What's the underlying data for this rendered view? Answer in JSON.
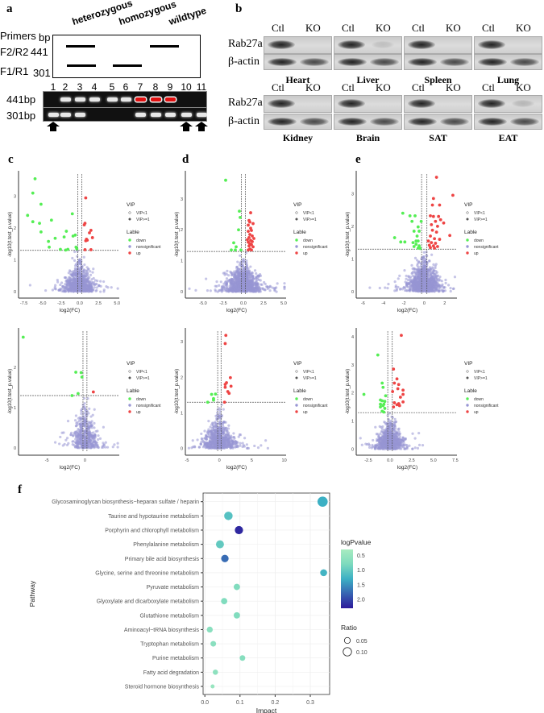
{
  "panel_labels": {
    "a": "a",
    "b": "b",
    "c": "c",
    "d": "d",
    "e": "e",
    "f": "f"
  },
  "panel_a": {
    "genotypes": [
      "heterozygous",
      "homozygous",
      "wildtype"
    ],
    "primers_header": "Primers",
    "bp_header": "bp",
    "primer_rows": [
      {
        "name": "F2/R2",
        "bp": "441"
      },
      {
        "name": "F1/R1",
        "bp": "301"
      }
    ],
    "lanes": [
      "1",
      "2",
      "3",
      "4",
      "5",
      "6",
      "7",
      "8",
      "9",
      "10",
      "11"
    ],
    "gel_rows": [
      {
        "label": "441bp",
        "bands": [
          0,
          1,
          1,
          1,
          1,
          1,
          2,
          2,
          2,
          0,
          0
        ]
      },
      {
        "label": "301bp",
        "bands": [
          1,
          1,
          1,
          0,
          0,
          0,
          1,
          1,
          1,
          1,
          1
        ]
      }
    ],
    "arrow_lanes": [
      1,
      10,
      11
    ]
  },
  "panel_b": {
    "ctl": "Ctl",
    "ko": "KO",
    "rows": [
      {
        "protein": "Rab27a",
        "control": "β-actin",
        "tissues": [
          "Heart",
          "Liver",
          "Spleen",
          "Lung"
        ]
      },
      {
        "protein": "Rab27a",
        "control": "β-actin",
        "tissues": [
          "Kidney",
          "Brain",
          "SAT",
          "EAT"
        ]
      }
    ]
  },
  "chart_data": [
    {
      "panel": "c",
      "type": "scatter",
      "xlabel": "log2(FC)",
      "ylabel": "-log10(t.test_p.value)",
      "xlim": [
        -8,
        5.3
      ],
      "ylim": [
        -0.1,
        3.7
      ],
      "xticks": [
        -7.5,
        -5,
        -2.5,
        0,
        2.5,
        5
      ],
      "xtick_labels": [
        "-7.5",
        "-5.0",
        "-2.5",
        "0.0",
        "2.5",
        "5.0"
      ],
      "yticks": [
        0,
        1,
        2,
        3
      ],
      "hline": 1.3,
      "vlines": [
        -0.26,
        0.26
      ],
      "nonsig_cloud": {
        "n": 700,
        "x_sd": 0.9,
        "y_max": 1.3,
        "seed": 3
      },
      "down": [
        [
          -6,
          3.55
        ],
        [
          -6.3,
          3.1
        ],
        [
          -5.2,
          2.75
        ],
        [
          -7,
          2.4
        ],
        [
          -6.3,
          2.2
        ],
        [
          -5.4,
          2.15
        ],
        [
          -3.8,
          2.25
        ],
        [
          -1,
          2.45
        ],
        [
          -5.2,
          1.88
        ],
        [
          -1.8,
          1.9
        ],
        [
          -2.1,
          1.72
        ],
        [
          -0.9,
          1.75
        ],
        [
          -0.6,
          1.78
        ],
        [
          -4.2,
          1.58
        ],
        [
          -3.3,
          1.68
        ],
        [
          -4.1,
          1.4
        ],
        [
          -2.6,
          1.33
        ],
        [
          -1.6,
          1.33
        ],
        [
          -0.5,
          1.4
        ],
        [
          -0.4,
          1.35
        ],
        [
          -1.9,
          1.31
        ]
      ],
      "up": [
        [
          0.8,
          2.95
        ],
        [
          0.7,
          2.15
        ],
        [
          0.6,
          2.1
        ],
        [
          1.5,
          1.93
        ],
        [
          1.3,
          1.85
        ],
        [
          1.7,
          1.7
        ],
        [
          0.9,
          1.65
        ],
        [
          1.0,
          1.62
        ],
        [
          0.8,
          1.6
        ],
        [
          1.5,
          1.32
        ],
        [
          0.7,
          1.32
        ]
      ]
    },
    {
      "panel": "d",
      "type": "scatter",
      "xlabel": "log2(FC)",
      "ylabel": "-log10(t.test_p.value)",
      "xlim": [
        -7,
        5.3
      ],
      "ylim": [
        -0.1,
        3.8
      ],
      "xticks": [
        -5,
        -2.5,
        0,
        2.5,
        5
      ],
      "xtick_labels": [
        "-5.0",
        "-2.5",
        "0.0",
        "2.5",
        "5.0"
      ],
      "yticks": [
        0,
        1,
        2,
        3
      ],
      "hline": 1.3,
      "vlines": [
        -0.26,
        0.26
      ],
      "nonsig_cloud": {
        "n": 900,
        "x_sd": 1.0,
        "y_max": 1.3,
        "seed": 7
      },
      "down": [
        [
          -2.2,
          3.6
        ],
        [
          -0.5,
          2.6
        ],
        [
          -0.4,
          2.4
        ],
        [
          -0.6,
          2.0
        ],
        [
          -1.2,
          1.58
        ],
        [
          -1.5,
          1.35
        ],
        [
          -0.9,
          1.45
        ],
        [
          -1.0,
          1.35
        ],
        [
          -0.3,
          1.35
        ]
      ],
      "up": [
        [
          0.9,
          2.55
        ],
        [
          0.7,
          2.3
        ],
        [
          0.8,
          2.25
        ],
        [
          1.2,
          2.2
        ],
        [
          0.6,
          2.15
        ],
        [
          0.9,
          2.05
        ],
        [
          1.0,
          1.98
        ],
        [
          0.6,
          1.95
        ],
        [
          0.8,
          1.85
        ],
        [
          1.1,
          1.8
        ],
        [
          0.7,
          1.75
        ],
        [
          1.3,
          1.72
        ],
        [
          0.5,
          1.68
        ],
        [
          0.9,
          1.66
        ],
        [
          1.1,
          1.62
        ],
        [
          0.6,
          1.6
        ],
        [
          0.8,
          1.55
        ],
        [
          1.0,
          1.52
        ],
        [
          0.7,
          1.48
        ],
        [
          1.2,
          1.45
        ],
        [
          0.8,
          1.38
        ],
        [
          0.6,
          1.35
        ],
        [
          1.0,
          1.35
        ]
      ]
    },
    {
      "panel": "e",
      "type": "scatter",
      "xlabel": "log2(FC)",
      "ylabel": "-log10(t.test_p.value)",
      "xlim": [
        -6.5,
        3.2
      ],
      "ylim": [
        -0.1,
        3.6
      ],
      "xticks": [
        -6,
        -4,
        -2,
        0,
        2
      ],
      "xtick_labels": [
        "-6",
        "-4",
        "-2",
        "0",
        "2"
      ],
      "yticks": [
        0,
        1,
        2,
        3
      ],
      "hline": 1.3,
      "vlines": [
        -0.26,
        0.26
      ],
      "nonsig_cloud": {
        "n": 1000,
        "x_sd": 0.7,
        "y_max": 1.3,
        "seed": 11
      },
      "down": [
        [
          -2.1,
          2.4
        ],
        [
          -1.4,
          2.32
        ],
        [
          -0.9,
          2.32
        ],
        [
          -1.2,
          2.15
        ],
        [
          -0.3,
          2.15
        ],
        [
          -0.6,
          1.98
        ],
        [
          -1.0,
          1.85
        ],
        [
          -0.5,
          1.85
        ],
        [
          -2.9,
          1.65
        ],
        [
          -0.7,
          1.7
        ],
        [
          -2.3,
          1.52
        ],
        [
          -1.9,
          1.52
        ],
        [
          -1.1,
          1.5
        ],
        [
          -0.6,
          1.55
        ],
        [
          -0.8,
          1.45
        ],
        [
          -0.5,
          1.4
        ],
        [
          -1.0,
          1.38
        ],
        [
          -0.6,
          1.33
        ],
        [
          -0.4,
          1.32
        ],
        [
          -0.8,
          1.55
        ]
      ],
      "up": [
        [
          1.2,
          3.5
        ],
        [
          2.8,
          2.95
        ],
        [
          0.9,
          2.85
        ],
        [
          0.8,
          2.65
        ],
        [
          1.5,
          2.65
        ],
        [
          0.6,
          2.32
        ],
        [
          0.9,
          2.3
        ],
        [
          1.4,
          2.3
        ],
        [
          1.6,
          2.2
        ],
        [
          1.1,
          2.15
        ],
        [
          1.9,
          2.1
        ],
        [
          0.7,
          2.05
        ],
        [
          1.3,
          2.0
        ],
        [
          0.8,
          1.88
        ],
        [
          1.2,
          1.82
        ],
        [
          2.5,
          1.72
        ],
        [
          0.6,
          1.7
        ],
        [
          1.0,
          1.62
        ],
        [
          1.5,
          1.6
        ],
        [
          0.4,
          1.55
        ],
        [
          0.7,
          1.5
        ],
        [
          1.1,
          1.48
        ],
        [
          0.5,
          1.42
        ],
        [
          0.9,
          1.4
        ],
        [
          1.3,
          1.38
        ],
        [
          0.6,
          1.35
        ],
        [
          1.0,
          1.33
        ]
      ]
    },
    {
      "panel": "c2",
      "type": "scatter",
      "xlabel": "log2(FC)",
      "ylabel": "-log10(t.test_p.value)",
      "xlim": [
        -8.5,
        4.5
      ],
      "ylim": [
        -0.1,
        2.9
      ],
      "xticks": [
        -5,
        0
      ],
      "xtick_labels": [
        "-5",
        "0"
      ],
      "yticks": [
        0,
        1,
        2
      ],
      "hline": 1.3,
      "vlines": [
        -0.26,
        0.26
      ],
      "nonsig_cloud": {
        "n": 450,
        "x_sd": 0.8,
        "y_max": 1.3,
        "seed": 19
      },
      "down": [
        [
          -8.1,
          2.75
        ],
        [
          -1.2,
          1.88
        ],
        [
          -0.5,
          1.87
        ],
        [
          -0.4,
          1.76
        ],
        [
          -0.9,
          1.35
        ],
        [
          -1.7,
          1.3
        ]
      ],
      "up": [
        [
          1.1,
          1.39
        ]
      ]
    },
    {
      "panel": "d2",
      "type": "scatter",
      "xlabel": "log2(FC)",
      "ylabel": "-log10(t.test_p.value)",
      "xlim": [
        -5,
        10.3
      ],
      "ylim": [
        -0.1,
        3.3
      ],
      "xticks": [
        -5,
        0,
        5,
        10
      ],
      "xtick_labels": [
        "-5",
        "0",
        "5",
        "10"
      ],
      "yticks": [
        0,
        1,
        2,
        3
      ],
      "hline": 1.3,
      "vlines": [
        -0.26,
        0.26
      ],
      "nonsig_cloud": {
        "n": 700,
        "x_sd": 1.1,
        "y_max": 1.3,
        "seed": 23
      },
      "down": [
        [
          -1.2,
          1.52
        ],
        [
          -0.6,
          1.53
        ],
        [
          -0.9,
          1.4
        ],
        [
          -0.9,
          1.36
        ],
        [
          -1.8,
          1.3
        ]
      ],
      "up": [
        [
          1.0,
          3.18
        ],
        [
          0.9,
          2.95
        ],
        [
          1.7,
          1.99
        ],
        [
          1.1,
          1.85
        ],
        [
          0.9,
          1.8
        ],
        [
          1.8,
          1.75
        ],
        [
          0.9,
          1.72
        ],
        [
          1.3,
          1.6
        ],
        [
          1.5,
          1.55
        ],
        [
          0.8,
          1.3
        ]
      ]
    },
    {
      "panel": "e2",
      "type": "scatter",
      "xlabel": "log2(FC)",
      "ylabel": "-log10(t.test_p.value)",
      "xlim": [
        -3.7,
        7.7
      ],
      "ylim": [
        -0.1,
        4.2
      ],
      "xticks": [
        -2.5,
        0,
        2.5,
        5,
        7.5
      ],
      "xtick_labels": [
        "-2.5",
        "0.0",
        "2.5",
        "5.0",
        "7.5"
      ],
      "yticks": [
        0,
        1,
        2,
        3,
        4
      ],
      "hline": 1.3,
      "vlines": [
        -0.26,
        0.26
      ],
      "nonsig_cloud": {
        "n": 700,
        "x_sd": 0.7,
        "y_max": 1.3,
        "seed": 29
      },
      "down": [
        [
          -1.4,
          3.35
        ],
        [
          -0.9,
          2.35
        ],
        [
          -0.8,
          2.2
        ],
        [
          -3.0,
          1.95
        ],
        [
          -0.5,
          1.9
        ],
        [
          -1.1,
          1.75
        ],
        [
          -0.9,
          1.72
        ],
        [
          -0.6,
          1.7
        ],
        [
          -1.1,
          1.6
        ],
        [
          -0.7,
          1.6
        ],
        [
          -0.8,
          1.55
        ],
        [
          -1.1,
          1.5
        ],
        [
          -0.6,
          1.45
        ],
        [
          -0.9,
          1.35
        ],
        [
          -0.7,
          1.32
        ]
      ],
      "up": [
        [
          1.3,
          4.05
        ],
        [
          0.4,
          2.85
        ],
        [
          0.8,
          2.5
        ],
        [
          0.5,
          2.35
        ],
        [
          1.0,
          2.3
        ],
        [
          0.9,
          2.15
        ],
        [
          1.5,
          2.1
        ],
        [
          0.3,
          2.05
        ],
        [
          1.5,
          1.95
        ],
        [
          1.2,
          1.85
        ],
        [
          0.5,
          1.65
        ],
        [
          1.0,
          1.62
        ],
        [
          1.5,
          1.68
        ],
        [
          0.8,
          1.58
        ],
        [
          1.1,
          1.55
        ],
        [
          0.4,
          1.5
        ]
      ]
    },
    {
      "panel": "f",
      "type": "scatter",
      "title": "",
      "xlabel": "Impact",
      "ylabel": "Pathway",
      "xlim": [
        -0.005,
        0.355
      ],
      "xticks": [
        0,
        0.1,
        0.2,
        0.3
      ],
      "xtick_labels": [
        "0.0",
        "0.1",
        "0.2",
        "0.3"
      ],
      "categories": [
        "Glycosaminoglycan biosynthesis−heparan sulfate / heparin",
        "Taurine and hypotaurine metabolism",
        "Porphyrin and chlorophyll metabolism",
        "Phenylalanine metabolism",
        "Primary bile acid biosynthesis",
        "Glycine, serine and threonine metabolism",
        "Pyruvate metabolism",
        "Glyoxylate and dicarboxylate metabolism",
        "Glutathione metabolism",
        "Aminoacyl−tRNA biosynthesis",
        "Tryptophan metabolism",
        "Purine metabolism",
        "Fatty acid degradation",
        "Steroid hormone biosynthesis"
      ],
      "impact": [
        0.335,
        0.067,
        0.097,
        0.043,
        0.057,
        0.338,
        0.091,
        0.055,
        0.091,
        0.014,
        0.024,
        0.107,
        0.03,
        0.022
      ],
      "logPvalue": [
        1.3,
        1.1,
        2.2,
        1.0,
        1.75,
        1.25,
        0.75,
        0.75,
        0.75,
        0.65,
        0.65,
        0.7,
        0.6,
        0.5
      ],
      "ratio": [
        0.13,
        0.09,
        0.085,
        0.08,
        0.07,
        0.06,
        0.05,
        0.05,
        0.05,
        0.045,
        0.04,
        0.04,
        0.035,
        0.02
      ],
      "legend_color": {
        "title": "logPvalue",
        "ticks": [
          "0.5",
          "1.0",
          "1.5",
          "2.0"
        ],
        "tick_values": [
          0.5,
          1.0,
          1.5,
          2.0
        ],
        "range": [
          0.3,
          2.3
        ]
      },
      "legend_size": {
        "title": "Ratio",
        "labels": [
          "0.05",
          "0.10"
        ],
        "values": [
          0.05,
          0.1
        ]
      }
    }
  ],
  "volcano_legend": {
    "vip_title": "VIP",
    "vip_items": [
      "VIP<1",
      "VIP>=1"
    ],
    "label_title": "Lable",
    "label_items": [
      "down",
      "nonsignificant",
      "up"
    ]
  },
  "colors": {
    "down": "#55ee55",
    "up": "#ee4444",
    "nonsig": "#9896d4"
  }
}
